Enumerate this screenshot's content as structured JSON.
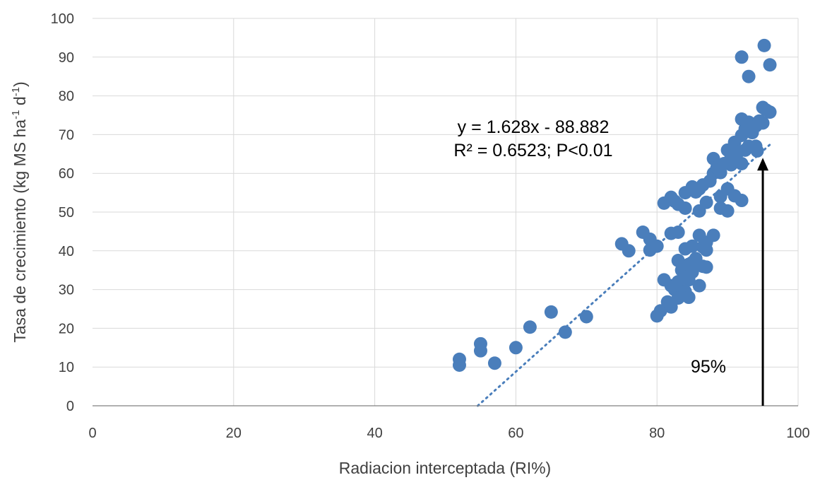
{
  "chart_data": {
    "type": "scatter",
    "title": "",
    "xlabel": "Radiacion interceptada (RI%)",
    "ylabel": {
      "prefix": "Tasa de crecimiento (kg MS ha",
      "sup1": "-1",
      "mid": " d",
      "sup2": "-1",
      "suffix": ")"
    },
    "xlim": [
      0,
      100
    ],
    "ylim": [
      0,
      100
    ],
    "xticks": [
      "0",
      "20",
      "40",
      "60",
      "80",
      "100"
    ],
    "yticks": [
      "0",
      "10",
      "20",
      "30",
      "40",
      "50",
      "60",
      "70",
      "80",
      "90",
      "100"
    ],
    "grid": true,
    "marker_color": "#4a7ebb",
    "trendline": {
      "slope": 1.628,
      "intercept": -88.882,
      "x_range": [
        54.6,
        96
      ],
      "style": "dotted",
      "color": "#4a7ebb"
    },
    "annotations": {
      "equation": "y = 1.628x - 88.882",
      "r2": "R² = 0.6523; P<0.01",
      "threshold": "95%"
    },
    "arrow": {
      "x": 95,
      "y_from": 0,
      "y_to": 64
    },
    "points": [
      [
        52,
        12
      ],
      [
        52,
        10.5
      ],
      [
        55,
        16
      ],
      [
        55,
        14.2
      ],
      [
        57,
        11
      ],
      [
        60,
        15
      ],
      [
        62,
        20.3
      ],
      [
        65,
        24.2
      ],
      [
        67,
        19
      ],
      [
        70,
        23
      ],
      [
        75,
        41.8
      ],
      [
        76,
        40
      ],
      [
        78,
        44.8
      ],
      [
        79,
        40.2
      ],
      [
        79,
        43
      ],
      [
        80,
        41.2
      ],
      [
        80,
        23.2
      ],
      [
        80.5,
        24.5
      ],
      [
        81,
        32.5
      ],
      [
        81,
        52.3
      ],
      [
        81.5,
        26.8
      ],
      [
        82,
        25.5
      ],
      [
        82,
        44.5
      ],
      [
        82,
        53.8
      ],
      [
        82,
        31
      ],
      [
        82.5,
        30
      ],
      [
        82.5,
        52.8
      ],
      [
        83,
        44.8
      ],
      [
        83,
        37.5
      ],
      [
        83,
        27.8
      ],
      [
        83,
        32
      ],
      [
        83,
        52
      ],
      [
        83.5,
        35
      ],
      [
        84,
        33
      ],
      [
        84,
        40.5
      ],
      [
        84,
        29.5
      ],
      [
        84,
        51
      ],
      [
        84,
        55
      ],
      [
        84.5,
        28
      ],
      [
        84.5,
        36.5
      ],
      [
        84.5,
        32.5
      ],
      [
        85,
        37
      ],
      [
        85,
        56.5
      ],
      [
        85,
        41.2
      ],
      [
        85,
        34.5
      ],
      [
        85.5,
        38
      ],
      [
        85.5,
        55.2
      ],
      [
        86,
        44
      ],
      [
        86,
        31
      ],
      [
        86,
        50.3
      ],
      [
        86,
        56
      ],
      [
        86.5,
        36
      ],
      [
        86.5,
        41
      ],
      [
        86.5,
        57
      ],
      [
        87,
        52.5
      ],
      [
        87,
        40.2
      ],
      [
        87,
        42.2
      ],
      [
        87,
        35.8
      ],
      [
        87.5,
        58
      ],
      [
        88,
        44
      ],
      [
        88,
        60
      ],
      [
        88,
        63.8
      ],
      [
        88.5,
        61.5
      ],
      [
        89,
        51
      ],
      [
        89,
        60.2
      ],
      [
        89,
        54
      ],
      [
        89.5,
        62.5
      ],
      [
        90,
        50.3
      ],
      [
        90,
        66
      ],
      [
        90,
        56
      ],
      [
        90.5,
        64.5
      ],
      [
        90.5,
        62.2
      ],
      [
        91,
        68
      ],
      [
        91,
        54.2
      ],
      [
        91,
        63.5
      ],
      [
        91.5,
        65.5
      ],
      [
        92,
        53
      ],
      [
        92,
        74
      ],
      [
        92,
        69.8
      ],
      [
        92,
        62.5
      ],
      [
        92.5,
        71.5
      ],
      [
        92.5,
        66
      ],
      [
        93,
        73.2
      ],
      [
        93,
        67
      ],
      [
        93,
        85
      ],
      [
        92,
        90
      ],
      [
        93.5,
        70.5
      ],
      [
        94,
        72.2
      ],
      [
        94,
        67
      ],
      [
        94.5,
        73.5
      ],
      [
        95,
        73
      ],
      [
        95,
        77
      ],
      [
        95.5,
        76.3
      ],
      [
        96,
        75.8
      ],
      [
        96,
        88
      ],
      [
        95.2,
        93
      ],
      [
        94.2,
        65.8
      ]
    ]
  }
}
